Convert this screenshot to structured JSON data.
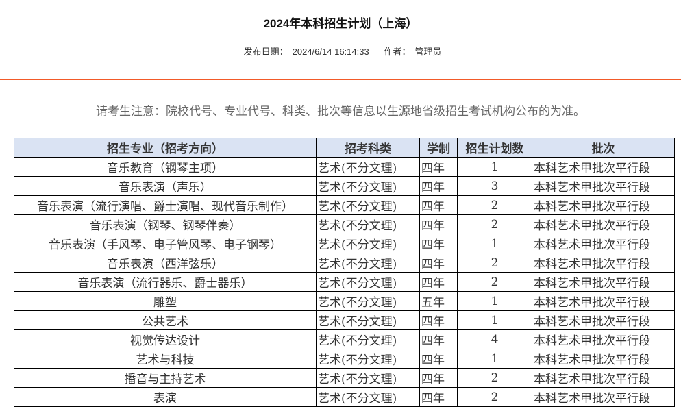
{
  "article": {
    "title": "2024年本科招生计划（上海）",
    "publish_label": "发布日期：",
    "publish_date": "2024/6/14 16:14:33",
    "author_label": "作者：",
    "author": "管理员"
  },
  "notice": "请考生注意：院校代号、专业代号、科类、批次等信息以生源地省级招生考试机构公布的为准。",
  "colors": {
    "accent_rule": "#f25a29",
    "header_bg": "#dae3f3"
  },
  "table": {
    "headers": [
      "招生专业（招考方向）",
      "招考科类",
      "学制",
      "招生计划数",
      "批次"
    ],
    "rows": [
      [
        "音乐教育（钢琴主项）",
        "艺术(不分文理)",
        "四年",
        "1",
        "本科艺术甲批次平行段"
      ],
      [
        "音乐表演（声乐）",
        "艺术(不分文理)",
        "四年",
        "3",
        "本科艺术甲批次平行段"
      ],
      [
        "音乐表演（流行演唱、爵士演唱、现代音乐制作）",
        "艺术(不分文理)",
        "四年",
        "2",
        "本科艺术甲批次平行段"
      ],
      [
        "音乐表演（钢琴、钢琴伴奏）",
        "艺术(不分文理)",
        "四年",
        "2",
        "本科艺术甲批次平行段"
      ],
      [
        "音乐表演（手风琴、电子管风琴、电子钢琴）",
        "艺术(不分文理)",
        "四年",
        "1",
        "本科艺术甲批次平行段"
      ],
      [
        "音乐表演（西洋弦乐）",
        "艺术(不分文理)",
        "四年",
        "2",
        "本科艺术甲批次平行段"
      ],
      [
        "音乐表演（流行器乐、爵士器乐）",
        "艺术(不分文理)",
        "四年",
        "2",
        "本科艺术甲批次平行段"
      ],
      [
        "雕塑",
        "艺术(不分文理)",
        "五年",
        "1",
        "本科艺术甲批次平行段"
      ],
      [
        "公共艺术",
        "艺术(不分文理)",
        "四年",
        "1",
        "本科艺术甲批次平行段"
      ],
      [
        "视觉传达设计",
        "艺术(不分文理)",
        "四年",
        "4",
        "本科艺术甲批次平行段"
      ],
      [
        "艺术与科技",
        "艺术(不分文理)",
        "四年",
        "1",
        "本科艺术甲批次平行段"
      ],
      [
        "播音与主持艺术",
        "艺术(不分文理)",
        "四年",
        "2",
        "本科艺术甲批次平行段"
      ],
      [
        "表演",
        "艺术(不分文理)",
        "四年",
        "2",
        "本科艺术甲批次平行段"
      ]
    ]
  }
}
